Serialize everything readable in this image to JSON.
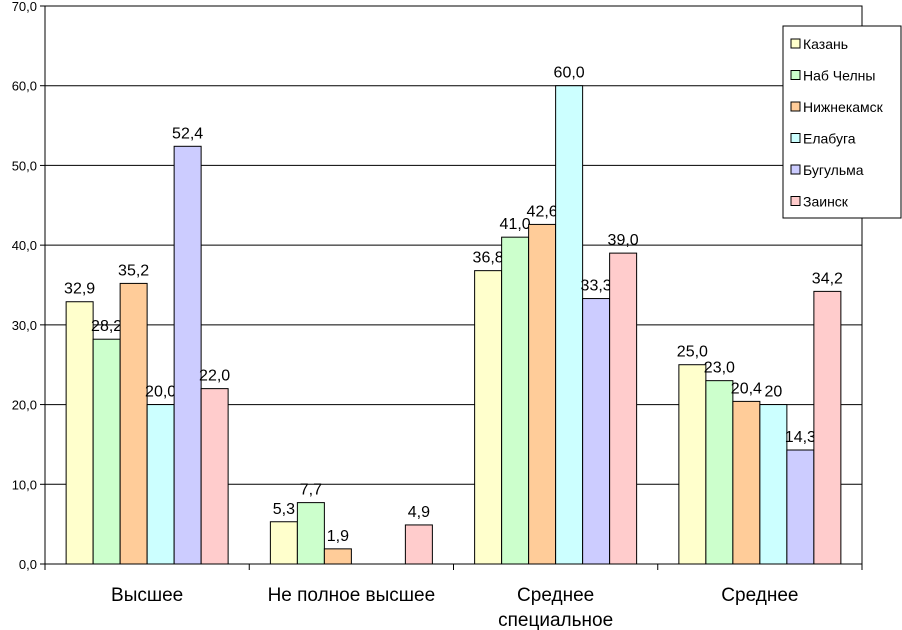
{
  "chart_data": {
    "type": "bar",
    "title": "",
    "xlabel": "",
    "ylabel": "",
    "ylim": [
      0,
      70
    ],
    "yticks": [
      "0,0",
      "10,0",
      "20,0",
      "30,0",
      "40,0",
      "50,0",
      "60,0",
      "70,0"
    ],
    "grid": true,
    "legend_position": "top-right",
    "categories": [
      [
        "Высшее"
      ],
      [
        "Не полное высшее"
      ],
      [
        "Среднее",
        "специальное"
      ],
      [
        "Среднее"
      ]
    ],
    "series": [
      {
        "name": "Казань",
        "color": "#ffffcc",
        "values": [
          32.9,
          5.3,
          36.8,
          25.0
        ],
        "labels": [
          "32,9",
          "5,3",
          "36,8",
          "25,0"
        ]
      },
      {
        "name": "Наб Челны",
        "color": "#ccffcc",
        "values": [
          28.2,
          7.7,
          41.0,
          23.0
        ],
        "labels": [
          "28,2",
          "7,7",
          "41,0",
          "23,0"
        ]
      },
      {
        "name": "Нижнекамск",
        "color": "#ffcc99",
        "values": [
          35.2,
          1.9,
          42.6,
          20.4
        ],
        "labels": [
          "35,2",
          "1,9",
          "42,6",
          "20,4"
        ]
      },
      {
        "name": "Елабуга",
        "color": "#ccffff",
        "values": [
          20.0,
          null,
          60.0,
          20.0
        ],
        "labels": [
          "20,0",
          "",
          "60,0",
          "20"
        ]
      },
      {
        "name": "Бугульма",
        "color": "#ccccff",
        "values": [
          52.4,
          null,
          33.3,
          14.3
        ],
        "labels": [
          "52,4",
          "",
          "33,3",
          "14,3"
        ]
      },
      {
        "name": "Заинск",
        "color": "#ffcccc",
        "values": [
          22.0,
          4.9,
          39.0,
          34.2
        ],
        "labels": [
          "22,0",
          "4,9",
          "39,0",
          "34,2"
        ]
      }
    ]
  }
}
